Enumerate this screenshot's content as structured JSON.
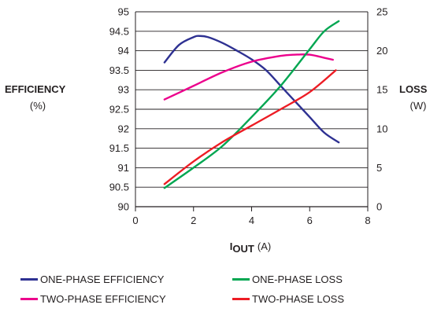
{
  "chart_data": {
    "type": "line",
    "x_range": [
      0,
      8
    ],
    "x_ticks": [
      "0",
      "2",
      "4",
      "6",
      "8"
    ],
    "x_title_main": "I",
    "x_title_sub": "OUT",
    "x_title_unit": "(A)",
    "y_left_range": [
      90,
      95
    ],
    "y_left_ticks": [
      "90",
      "90.5",
      "91",
      "91.5",
      "92",
      "92.5",
      "93",
      "93.5",
      "94",
      "94.5",
      "95"
    ],
    "y_left_title": "EFFICIENCY",
    "y_left_unit": "(%)",
    "y_right_range": [
      0,
      25
    ],
    "y_right_ticks": [
      "0",
      "5",
      "10",
      "15",
      "20",
      "25"
    ],
    "y_right_title": "LOSS",
    "y_right_unit": "(W)",
    "grid": "horizontal",
    "legend_position": "bottom",
    "series": [
      {
        "name": "ONE-PHASE EFFICIENCY",
        "axis": "left",
        "color": "#2e3192",
        "x": [
          1,
          1.5,
          2,
          2.2,
          2.5,
          3,
          3.5,
          4,
          4.5,
          5,
          5.5,
          6,
          6.5,
          7
        ],
        "y": [
          93.7,
          94.15,
          94.35,
          94.38,
          94.35,
          94.2,
          94.0,
          93.78,
          93.5,
          93.1,
          92.7,
          92.3,
          91.9,
          91.65
        ]
      },
      {
        "name": "TWO-PHASE EFFICIENCY",
        "axis": "left",
        "color": "#ec008c",
        "x": [
          1,
          2,
          3,
          4,
          5,
          5.5,
          6,
          6.5,
          6.8
        ],
        "y": [
          92.75,
          93.1,
          93.45,
          93.72,
          93.87,
          93.9,
          93.9,
          93.82,
          93.77
        ]
      },
      {
        "name": "ONE-PHASE LOSS",
        "axis": "right",
        "color": "#00a651",
        "x": [
          1,
          2,
          3,
          4,
          5,
          6,
          6.5,
          7
        ],
        "y": [
          2.4,
          5.0,
          7.8,
          11.5,
          15.5,
          20.2,
          22.5,
          23.8
        ]
      },
      {
        "name": "TWO-PHASE LOSS",
        "axis": "right",
        "color": "#ed1c24",
        "x": [
          1,
          2,
          3,
          4,
          5,
          6,
          6.9
        ],
        "y": [
          2.9,
          5.8,
          8.3,
          10.4,
          12.5,
          14.7,
          17.5
        ]
      }
    ]
  }
}
